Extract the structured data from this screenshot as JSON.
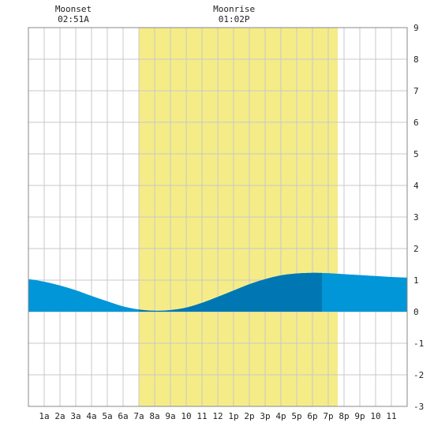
{
  "chart_data": {
    "type": "area",
    "title": "",
    "xlabel": "",
    "ylabel": "",
    "x_ticks": [
      "1a",
      "2a",
      "3a",
      "4a",
      "5a",
      "6a",
      "7a",
      "8a",
      "9a",
      "10",
      "11",
      "12",
      "1p",
      "2p",
      "3p",
      "4p",
      "5p",
      "6p",
      "7p",
      "8p",
      "9p",
      "10",
      "11"
    ],
    "y_ticks": [
      9,
      8,
      7,
      6,
      5,
      4,
      3,
      2,
      1,
      0,
      -1,
      -2,
      -3
    ],
    "xlim": [
      0,
      24
    ],
    "ylim": [
      -3,
      9
    ],
    "grid": true,
    "daylight": {
      "start_hour": 7.0,
      "end_hour": 19.6
    },
    "highlight": {
      "start_hour": 7.0,
      "end_hour": 18.6
    },
    "moon_events": [
      {
        "label": "Moonset",
        "time": "02:51A",
        "hour": 2.85
      },
      {
        "label": "Moonrise",
        "time": "01:02P",
        "hour": 13.03
      }
    ],
    "series": [
      {
        "x": [
          0,
          1,
          2,
          3,
          4,
          5,
          6,
          7,
          8,
          9,
          10,
          11,
          12,
          13,
          14,
          15,
          16,
          17,
          18,
          19,
          20,
          21,
          22,
          23,
          24
        ],
        "values": [
          1.03,
          0.95,
          0.83,
          0.68,
          0.5,
          0.33,
          0.17,
          0.07,
          0.03,
          0.05,
          0.13,
          0.28,
          0.47,
          0.67,
          0.87,
          1.03,
          1.15,
          1.21,
          1.23,
          1.22,
          1.19,
          1.16,
          1.13,
          1.1,
          1.08
        ]
      }
    ],
    "colors": {
      "tide_fill": "#0096d8",
      "tide_highlight": "#0077b3",
      "daylight": "#f5ec88",
      "grid": "#c8c8c8",
      "frame": "#888888"
    }
  }
}
